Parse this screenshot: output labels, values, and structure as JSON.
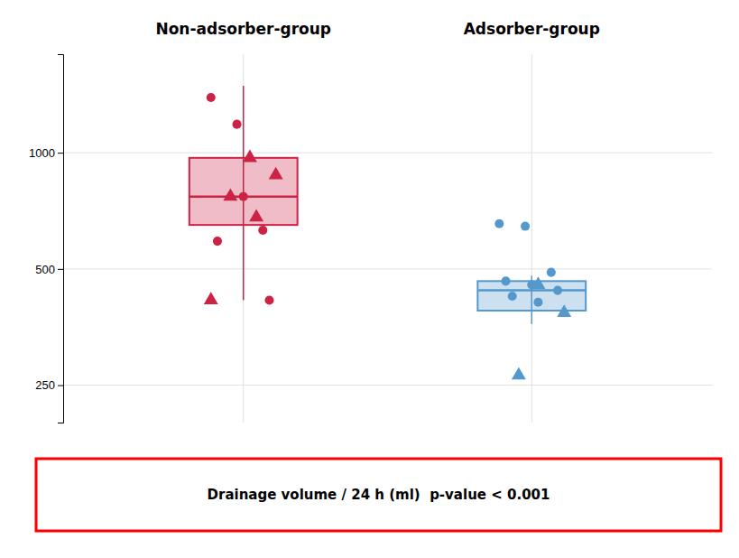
{
  "chart_data": {
    "type": "box",
    "log": "y",
    "grid": true,
    "ylim": [
      200,
      1800
    ],
    "yticks": [
      250,
      500,
      1000
    ],
    "annotation": "Drainage volume / 24 h (ml)  p-value < 0.001",
    "groups": [
      {
        "label": "Non-adsorber-group",
        "color": "#CC2244",
        "box": {
          "q1": 650,
          "median": 770,
          "q3": 970,
          "whisker_low": 415,
          "whisker_high": 1490
        },
        "points": [
          {
            "marker": "circle",
            "values": [
              1390,
              1185,
              630,
              590,
              770,
              415
            ]
          },
          {
            "marker": "triangle",
            "values": [
              970,
              875,
              770,
              680,
              415
            ]
          }
        ]
      },
      {
        "label": "Adsorber-group",
        "color": "#5599CC",
        "box": {
          "q1": 390,
          "median": 440,
          "q3": 465,
          "whisker_low": 360,
          "whisker_high": 480
        },
        "points": [
          {
            "marker": "circle",
            "values": [
              655,
              645,
              490,
              465,
              455,
              440,
              425,
              410
            ]
          },
          {
            "marker": "triangle",
            "values": [
              455,
              385,
              265
            ]
          }
        ]
      }
    ]
  }
}
